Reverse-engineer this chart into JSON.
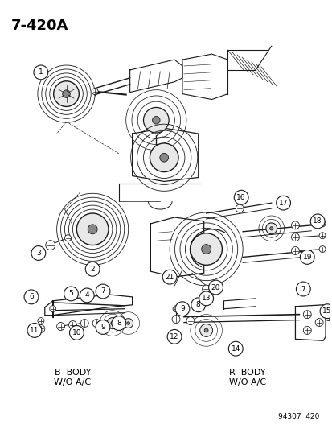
{
  "title": "7-420A",
  "background_color": "#ffffff",
  "line_color": "#000000",
  "text_color": "#000000",
  "part_number_label": "94307  420",
  "labels": {
    "b_body": "B  BODY\nW/O A/C",
    "r_body": "R  BODY\nW/O A/C"
  },
  "figsize": [
    4.14,
    5.33
  ],
  "dpi": 100
}
